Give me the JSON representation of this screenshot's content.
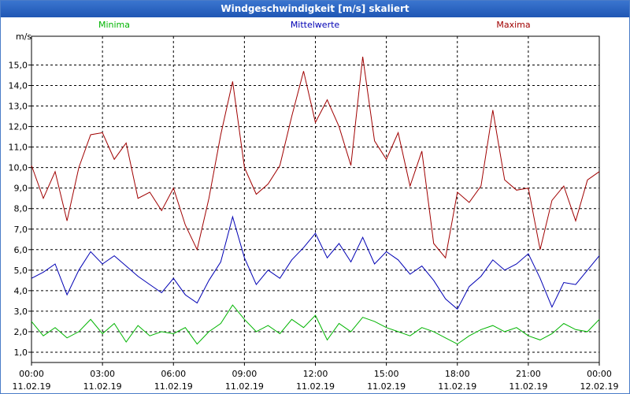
{
  "window": {
    "title": "Windgeschwindigkeit [m/s] skaliert"
  },
  "chart_data": {
    "type": "line",
    "title": "Windgeschwindigkeit [m/s] skaliert",
    "ylabel": "m/s",
    "xlabel": "",
    "ylim": [
      0.5,
      16.4
    ],
    "xlim": [
      0,
      24
    ],
    "grid": true,
    "y_ticks": [
      "1,0",
      "2,0",
      "3,0",
      "4,0",
      "5,0",
      "6,0",
      "7,0",
      "8,0",
      "9,0",
      "10,0",
      "11,0",
      "12,0",
      "13,0",
      "14,0",
      "15,0"
    ],
    "x_ticks": [
      {
        "time": "00:00",
        "date": "11.02.19"
      },
      {
        "time": "03:00",
        "date": "11.02.19"
      },
      {
        "time": "06:00",
        "date": "11.02.19"
      },
      {
        "time": "09:00",
        "date": "11.02.19"
      },
      {
        "time": "12:00",
        "date": "11.02.19"
      },
      {
        "time": "15:00",
        "date": "11.02.19"
      },
      {
        "time": "18:00",
        "date": "11.02.19"
      },
      {
        "time": "21:00",
        "date": "11.02.19"
      },
      {
        "time": "00:00",
        "date": "12.02.19"
      }
    ],
    "legend": [
      "Minima",
      "Mittelwerte",
      "Maxima"
    ],
    "series": [
      {
        "name": "Minima",
        "color": "#00b400",
        "x": [
          0,
          0.5,
          1,
          1.5,
          2,
          2.5,
          3,
          3.5,
          4,
          4.5,
          5,
          5.5,
          6,
          6.5,
          7,
          7.5,
          8,
          8.5,
          9,
          9.5,
          10,
          10.5,
          11,
          11.5,
          12,
          12.5,
          13,
          13.5,
          14,
          14.5,
          15,
          15.5,
          16,
          16.5,
          17,
          17.5,
          18,
          18.5,
          19,
          19.5,
          20,
          20.5,
          21,
          21.5,
          22,
          22.5,
          23,
          23.5,
          24
        ],
        "values": [
          2.5,
          1.8,
          2.2,
          1.7,
          2.0,
          2.6,
          1.9,
          2.4,
          1.5,
          2.3,
          1.8,
          2.0,
          1.9,
          2.2,
          1.4,
          2.0,
          2.4,
          3.3,
          2.6,
          2.0,
          2.3,
          1.9,
          2.6,
          2.2,
          2.8,
          1.6,
          2.4,
          2.0,
          2.7,
          2.5,
          2.2,
          2.0,
          1.8,
          2.2,
          2.0,
          1.7,
          1.4,
          1.8,
          2.1,
          2.3,
          2.0,
          2.2,
          1.8,
          1.6,
          1.9,
          2.4,
          2.1,
          2.0,
          2.6
        ]
      },
      {
        "name": "Mittelwerte",
        "color": "#0000b4",
        "x": [
          0,
          0.5,
          1,
          1.5,
          2,
          2.5,
          3,
          3.5,
          4,
          4.5,
          5,
          5.5,
          6,
          6.5,
          7,
          7.5,
          8,
          8.5,
          9,
          9.5,
          10,
          10.5,
          11,
          11.5,
          12,
          12.5,
          13,
          13.5,
          14,
          14.5,
          15,
          15.5,
          16,
          16.5,
          17,
          17.5,
          18,
          18.5,
          19,
          19.5,
          20,
          20.5,
          21,
          21.5,
          22,
          22.5,
          23,
          23.5,
          24
        ],
        "values": [
          4.6,
          4.9,
          5.3,
          3.8,
          5.0,
          5.9,
          5.3,
          5.7,
          5.2,
          4.7,
          4.3,
          3.9,
          4.6,
          3.8,
          3.4,
          4.5,
          5.4,
          7.6,
          5.6,
          4.3,
          5.0,
          4.6,
          5.5,
          6.1,
          6.8,
          5.6,
          6.3,
          5.4,
          6.6,
          5.3,
          5.9,
          5.5,
          4.8,
          5.2,
          4.5,
          3.6,
          3.1,
          4.2,
          4.7,
          5.5,
          5.0,
          5.3,
          5.8,
          4.6,
          3.2,
          4.4,
          4.3,
          5.0,
          5.7
        ]
      },
      {
        "name": "Maxima",
        "color": "#a00000",
        "x": [
          0,
          0.5,
          1,
          1.5,
          2,
          2.5,
          3,
          3.5,
          4,
          4.5,
          5,
          5.5,
          6,
          6.5,
          7,
          7.5,
          8,
          8.5,
          9,
          9.5,
          10,
          10.5,
          11,
          11.5,
          12,
          12.5,
          13,
          13.5,
          14,
          14.5,
          15,
          15.5,
          16,
          16.5,
          17,
          17.5,
          18,
          18.5,
          19,
          19.5,
          20,
          20.5,
          21,
          21.5,
          22,
          22.5,
          23,
          23.5,
          24
        ],
        "values": [
          10.1,
          8.5,
          9.8,
          7.4,
          10.0,
          11.6,
          11.7,
          10.4,
          11.2,
          8.5,
          8.8,
          7.9,
          9.0,
          7.2,
          6.0,
          8.5,
          11.6,
          14.2,
          10.0,
          8.7,
          9.2,
          10.1,
          12.5,
          14.7,
          12.2,
          13.3,
          12.0,
          10.1,
          15.4,
          11.3,
          10.4,
          11.7,
          9.1,
          10.8,
          6.3,
          5.6,
          8.8,
          8.3,
          9.1,
          12.8,
          9.4,
          8.9,
          9.0,
          6.0,
          8.4,
          9.1,
          7.4,
          9.4,
          9.8
        ]
      }
    ]
  }
}
